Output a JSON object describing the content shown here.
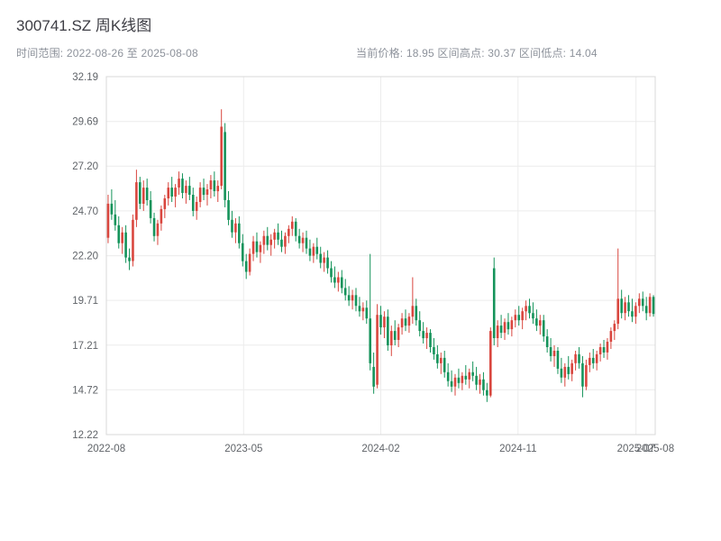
{
  "header": {
    "title": "300741.SZ 周K线图",
    "subtitle_left": "时间范围: 2022-08-26 至 2025-08-08",
    "subtitle_right": "当前价格: 18.95  区间高点: 30.37  区间低点: 14.04"
  },
  "chart_data": {
    "type": "candlestick",
    "symbol": "300741.SZ",
    "period": "weekly",
    "title": "300741.SZ 周K线图",
    "date_range": {
      "start": "2022-08-26",
      "end": "2025-08-08"
    },
    "current_price": 18.95,
    "range_high": 30.37,
    "range_low": 14.04,
    "legend": "none",
    "grid": true,
    "y_axis": {
      "min": 12.22,
      "max": 32.19,
      "ticks": [
        32.19,
        29.69,
        27.2,
        24.7,
        22.2,
        19.71,
        17.21,
        14.72,
        12.22
      ]
    },
    "x_axis": {
      "ticks": [
        {
          "label": "2022-08",
          "pos": 0.0
        },
        {
          "label": "2023-05",
          "pos": 0.25
        },
        {
          "label": "2024-02",
          "pos": 0.5
        },
        {
          "label": "2024-11",
          "pos": 0.75
        },
        {
          "label": "2025-07",
          "pos": 0.965
        },
        {
          "label": "2025-08",
          "pos": 1.0
        }
      ]
    },
    "colors": {
      "up": "#d9463e",
      "down": "#14935a",
      "grid": "#ececec",
      "border": "#d8d8d8",
      "axis_text": "#5f6368"
    },
    "candles_ohlc": [
      [
        23.2,
        25.6,
        22.9,
        25.1
      ],
      [
        25.1,
        25.9,
        24.2,
        24.5
      ],
      [
        24.5,
        25.3,
        23.6,
        23.9
      ],
      [
        23.9,
        24.4,
        22.6,
        22.9
      ],
      [
        22.9,
        23.8,
        22.3,
        23.5
      ],
      [
        23.5,
        23.9,
        21.8,
        22.1
      ],
      [
        22.1,
        22.6,
        21.4,
        21.9
      ],
      [
        21.9,
        24.5,
        21.6,
        24.2
      ],
      [
        24.2,
        27.0,
        23.8,
        26.3
      ],
      [
        26.3,
        26.6,
        24.8,
        25.1
      ],
      [
        25.1,
        26.4,
        24.7,
        26.0
      ],
      [
        26.0,
        26.5,
        25.0,
        25.3
      ],
      [
        25.3,
        25.8,
        24.0,
        24.3
      ],
      [
        24.3,
        24.6,
        23.0,
        23.3
      ],
      [
        23.3,
        24.2,
        22.8,
        24.0
      ],
      [
        24.0,
        25.0,
        23.6,
        24.8
      ],
      [
        24.8,
        25.6,
        24.3,
        25.4
      ],
      [
        25.4,
        26.3,
        25.0,
        26.0
      ],
      [
        26.0,
        26.6,
        25.2,
        25.5
      ],
      [
        25.5,
        26.2,
        24.9,
        26.0
      ],
      [
        26.0,
        26.9,
        25.6,
        26.5
      ],
      [
        26.5,
        26.8,
        25.4,
        25.7
      ],
      [
        25.7,
        26.4,
        25.1,
        26.1
      ],
      [
        26.1,
        26.6,
        25.3,
        25.6
      ],
      [
        25.6,
        26.0,
        24.4,
        24.7
      ],
      [
        24.7,
        25.5,
        24.2,
        25.2
      ],
      [
        25.2,
        26.3,
        24.9,
        26.0
      ],
      [
        26.0,
        26.5,
        25.3,
        25.6
      ],
      [
        25.6,
        26.2,
        25.0,
        25.9
      ],
      [
        25.9,
        26.7,
        25.4,
        26.4
      ],
      [
        26.4,
        26.9,
        25.5,
        25.8
      ],
      [
        25.8,
        26.4,
        25.2,
        26.1
      ],
      [
        26.1,
        30.37,
        25.9,
        29.4
      ],
      [
        29.1,
        29.6,
        24.9,
        25.3
      ],
      [
        25.3,
        25.8,
        23.9,
        24.2
      ],
      [
        24.2,
        24.7,
        23.2,
        23.5
      ],
      [
        23.5,
        24.3,
        22.9,
        24.0
      ],
      [
        24.0,
        24.4,
        22.6,
        22.9
      ],
      [
        22.9,
        23.4,
        21.6,
        21.9
      ],
      [
        21.9,
        22.3,
        20.9,
        21.3
      ],
      [
        21.3,
        22.6,
        21.1,
        22.3
      ],
      [
        22.3,
        23.3,
        21.9,
        23.0
      ],
      [
        23.0,
        23.5,
        22.1,
        22.4
      ],
      [
        22.4,
        23.0,
        21.8,
        22.8
      ],
      [
        22.8,
        23.6,
        22.3,
        23.3
      ],
      [
        23.3,
        23.8,
        22.5,
        22.8
      ],
      [
        22.8,
        23.4,
        22.2,
        23.1
      ],
      [
        23.1,
        23.7,
        22.6,
        23.5
      ],
      [
        23.5,
        24.0,
        22.8,
        23.1
      ],
      [
        23.1,
        23.6,
        22.4,
        22.7
      ],
      [
        22.7,
        23.5,
        22.3,
        23.3
      ],
      [
        23.3,
        23.9,
        22.9,
        23.7
      ],
      [
        23.7,
        24.4,
        23.3,
        24.1
      ],
      [
        24.1,
        24.3,
        23.0,
        23.3
      ],
      [
        23.3,
        23.7,
        22.6,
        22.9
      ],
      [
        22.9,
        23.5,
        22.4,
        23.2
      ],
      [
        23.2,
        23.6,
        22.3,
        22.6
      ],
      [
        22.6,
        23.1,
        21.9,
        22.2
      ],
      [
        22.2,
        22.9,
        21.8,
        22.7
      ],
      [
        22.7,
        23.2,
        22.0,
        22.3
      ],
      [
        22.3,
        22.7,
        21.5,
        21.8
      ],
      [
        21.8,
        22.4,
        21.3,
        22.1
      ],
      [
        22.1,
        22.5,
        21.2,
        21.5
      ],
      [
        21.5,
        21.9,
        20.7,
        21.0
      ],
      [
        21.0,
        21.6,
        20.4,
        20.7
      ],
      [
        20.7,
        21.3,
        20.2,
        21.0
      ],
      [
        21.0,
        21.4,
        20.1,
        20.4
      ],
      [
        20.4,
        20.9,
        19.7,
        20.0
      ],
      [
        20.0,
        20.5,
        19.4,
        19.7
      ],
      [
        19.7,
        20.3,
        19.2,
        20.0
      ],
      [
        20.0,
        20.4,
        19.1,
        19.4
      ],
      [
        19.4,
        19.9,
        18.8,
        19.1
      ],
      [
        19.1,
        19.6,
        18.6,
        19.3
      ],
      [
        19.3,
        19.7,
        18.4,
        18.7
      ],
      [
        18.7,
        22.3,
        15.8,
        16.2
      ],
      [
        16.0,
        16.8,
        14.5,
        14.9
      ],
      [
        15.0,
        19.5,
        14.8,
        18.9
      ],
      [
        18.9,
        19.4,
        17.8,
        18.2
      ],
      [
        18.2,
        19.1,
        17.6,
        18.8
      ],
      [
        18.8,
        19.2,
        16.9,
        17.2
      ],
      [
        17.2,
        18.3,
        16.6,
        18.0
      ],
      [
        18.0,
        18.6,
        17.2,
        17.5
      ],
      [
        17.5,
        18.4,
        17.1,
        18.2
      ],
      [
        18.2,
        19.0,
        17.8,
        18.7
      ],
      [
        18.7,
        19.2,
        18.0,
        18.3
      ],
      [
        18.3,
        19.0,
        17.9,
        18.8
      ],
      [
        18.8,
        21.0,
        18.4,
        19.4
      ],
      [
        19.4,
        19.8,
        18.3,
        18.6
      ],
      [
        18.6,
        19.1,
        17.7,
        18.0
      ],
      [
        18.0,
        18.5,
        17.3,
        17.6
      ],
      [
        17.6,
        18.2,
        17.0,
        17.9
      ],
      [
        17.9,
        18.1,
        16.8,
        17.1
      ],
      [
        17.1,
        17.6,
        16.4,
        16.7
      ],
      [
        16.7,
        17.2,
        15.9,
        16.2
      ],
      [
        16.2,
        16.8,
        15.6,
        16.5
      ],
      [
        16.5,
        16.9,
        15.4,
        15.7
      ],
      [
        15.7,
        16.2,
        14.9,
        15.2
      ],
      [
        15.2,
        15.8,
        14.6,
        14.9
      ],
      [
        14.9,
        15.6,
        14.4,
        15.4
      ],
      [
        15.4,
        15.9,
        14.8,
        15.1
      ],
      [
        15.1,
        15.7,
        14.7,
        15.5
      ],
      [
        15.5,
        16.1,
        15.0,
        15.3
      ],
      [
        15.3,
        15.9,
        14.8,
        15.7
      ],
      [
        15.7,
        16.3,
        15.2,
        15.5
      ],
      [
        15.5,
        16.0,
        14.7,
        15.0
      ],
      [
        15.0,
        15.6,
        14.5,
        15.3
      ],
      [
        15.3,
        15.7,
        14.4,
        14.7
      ],
      [
        14.7,
        15.1,
        14.04,
        14.4
      ],
      [
        14.4,
        18.2,
        14.3,
        18.0
      ],
      [
        21.5,
        22.1,
        17.2,
        17.6
      ],
      [
        17.6,
        18.6,
        17.1,
        18.3
      ],
      [
        18.3,
        18.9,
        17.6,
        17.9
      ],
      [
        17.9,
        18.7,
        17.5,
        18.5
      ],
      [
        18.5,
        19.0,
        17.8,
        18.1
      ],
      [
        18.1,
        18.8,
        17.7,
        18.6
      ],
      [
        18.6,
        19.2,
        18.2,
        18.9
      ],
      [
        18.9,
        19.4,
        18.3,
        18.6
      ],
      [
        18.6,
        19.3,
        18.1,
        19.1
      ],
      [
        19.1,
        19.7,
        18.6,
        19.4
      ],
      [
        19.4,
        19.8,
        18.7,
        19.0
      ],
      [
        19.0,
        19.6,
        18.4,
        18.7
      ],
      [
        18.7,
        19.2,
        18.0,
        18.3
      ],
      [
        18.3,
        18.9,
        17.8,
        18.6
      ],
      [
        18.6,
        18.9,
        17.4,
        17.7
      ],
      [
        17.7,
        18.1,
        16.8,
        17.1
      ],
      [
        17.1,
        17.6,
        16.3,
        16.6
      ],
      [
        16.6,
        17.2,
        16.0,
        16.9
      ],
      [
        16.9,
        17.1,
        15.6,
        15.9
      ],
      [
        15.9,
        16.5,
        15.1,
        15.4
      ],
      [
        15.4,
        16.2,
        14.9,
        16.0
      ],
      [
        16.0,
        16.6,
        15.3,
        15.6
      ],
      [
        15.6,
        16.4,
        15.2,
        16.2
      ],
      [
        16.2,
        16.9,
        15.8,
        16.7
      ],
      [
        16.7,
        17.1,
        15.9,
        16.2
      ],
      [
        16.2,
        16.6,
        14.3,
        14.9
      ],
      [
        14.9,
        16.4,
        14.7,
        16.1
      ],
      [
        16.1,
        16.8,
        15.7,
        16.5
      ],
      [
        16.5,
        17.0,
        15.9,
        16.2
      ],
      [
        16.2,
        16.9,
        15.8,
        16.7
      ],
      [
        16.7,
        17.3,
        16.3,
        17.1
      ],
      [
        17.1,
        17.5,
        16.5,
        16.8
      ],
      [
        16.8,
        17.6,
        16.4,
        17.4
      ],
      [
        17.4,
        18.2,
        17.0,
        18.0
      ],
      [
        18.0,
        18.6,
        17.5,
        18.4
      ],
      [
        18.4,
        22.6,
        18.1,
        19.8
      ],
      [
        19.8,
        20.3,
        18.7,
        19.0
      ],
      [
        19.0,
        19.9,
        18.6,
        19.6
      ],
      [
        19.6,
        20.0,
        18.8,
        19.1
      ],
      [
        19.1,
        19.8,
        18.5,
        18.8
      ],
      [
        18.8,
        19.6,
        18.4,
        19.4
      ],
      [
        19.4,
        20.1,
        19.0,
        19.8
      ],
      [
        19.8,
        20.2,
        19.1,
        19.4
      ],
      [
        19.4,
        19.9,
        18.6,
        19.0
      ],
      [
        19.0,
        20.1,
        18.8,
        19.9
      ],
      [
        19.9,
        20.0,
        18.8,
        18.95
      ]
    ]
  }
}
